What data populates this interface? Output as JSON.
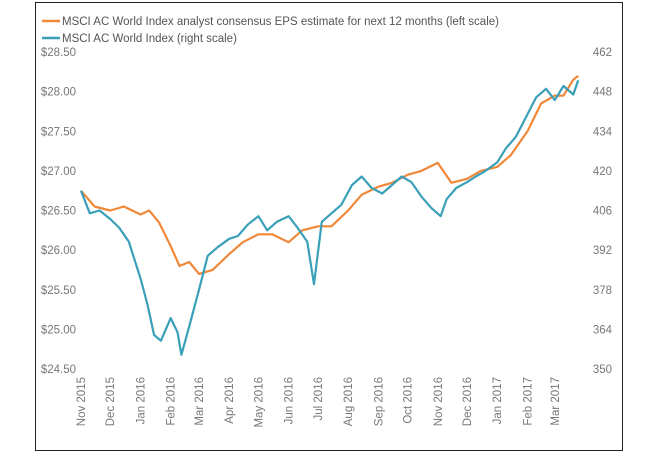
{
  "chart_data": {
    "type": "line",
    "title": "",
    "x_tick_labels": [
      "Nov 2015",
      "Dec 2015",
      "Jan 2016",
      "Feb 2016",
      "Mar 2016",
      "Apr 2016",
      "May 2016",
      "Jun 2016",
      "Jul 2016",
      "Aug 2016",
      "Sep 2016",
      "Oct 2016",
      "Nov 2016",
      "Dec 2016",
      "Jan 2017",
      "Feb 2017",
      "Mar 2017"
    ],
    "left_axis": {
      "ylim": [
        24.5,
        28.5
      ],
      "ticks": [
        24.5,
        25.0,
        25.5,
        26.0,
        26.5,
        27.0,
        27.5,
        28.0,
        28.5
      ],
      "tick_labels": [
        "$24.50",
        "$25.00",
        "$25.50",
        "$26.00",
        "$26.50",
        "$27.00",
        "$27.50",
        "$28.00",
        "$28.50"
      ]
    },
    "right_axis": {
      "ylim": [
        350,
        462
      ],
      "ticks": [
        350,
        364,
        378,
        392,
        406,
        420,
        434,
        448,
        462
      ],
      "tick_labels": [
        "350",
        "364",
        "378",
        "392",
        "406",
        "420",
        "434",
        "448",
        "462"
      ]
    },
    "grid": false,
    "legend_position": "top-left",
    "series": [
      {
        "name": "MSCI AC World Index analyst consensus EPS estimate for next 12 months  (left scale)",
        "axis": "left",
        "color": "#f0883a",
        "x": [
          "2015-11-01",
          "2015-11-15",
          "2015-12-01",
          "2015-12-15",
          "2016-01-01",
          "2016-01-10",
          "2016-01-20",
          "2016-02-01",
          "2016-02-10",
          "2016-02-20",
          "2016-03-01",
          "2016-03-15",
          "2016-04-01",
          "2016-04-15",
          "2016-05-01",
          "2016-05-15",
          "2016-06-01",
          "2016-06-15",
          "2016-07-01",
          "2016-07-15",
          "2016-08-01",
          "2016-08-15",
          "2016-09-01",
          "2016-09-15",
          "2016-10-01",
          "2016-10-15",
          "2016-11-01",
          "2016-11-15",
          "2016-12-01",
          "2016-12-15",
          "2017-01-01",
          "2017-01-15",
          "2017-02-01",
          "2017-02-15",
          "2017-03-01",
          "2017-03-10",
          "2017-03-20",
          "2017-03-25"
        ],
        "values": [
          26.75,
          26.55,
          26.5,
          26.55,
          26.45,
          26.5,
          26.35,
          26.05,
          25.8,
          25.85,
          25.7,
          25.75,
          25.95,
          26.1,
          26.2,
          26.2,
          26.1,
          26.25,
          26.3,
          26.3,
          26.5,
          26.7,
          26.8,
          26.85,
          26.95,
          27.0,
          27.1,
          26.85,
          26.9,
          27.0,
          27.05,
          27.2,
          27.5,
          27.85,
          27.95,
          27.95,
          28.15,
          28.2
        ]
      },
      {
        "name": "MSCI AC World Index (right scale)",
        "axis": "right",
        "color": "#3aa0b8",
        "x": [
          "2015-11-01",
          "2015-11-10",
          "2015-11-20",
          "2015-12-01",
          "2015-12-10",
          "2015-12-20",
          "2016-01-01",
          "2016-01-08",
          "2016-01-15",
          "2016-01-22",
          "2016-02-01",
          "2016-02-08",
          "2016-02-12",
          "2016-02-20",
          "2016-03-01",
          "2016-03-10",
          "2016-03-20",
          "2016-04-01",
          "2016-04-10",
          "2016-04-20",
          "2016-05-01",
          "2016-05-10",
          "2016-05-20",
          "2016-06-01",
          "2016-06-10",
          "2016-06-20",
          "2016-06-27",
          "2016-07-05",
          "2016-07-15",
          "2016-07-25",
          "2016-08-05",
          "2016-08-15",
          "2016-08-25",
          "2016-09-05",
          "2016-09-15",
          "2016-09-25",
          "2016-10-05",
          "2016-10-15",
          "2016-10-25",
          "2016-11-04",
          "2016-11-10",
          "2016-11-20",
          "2016-12-01",
          "2016-12-10",
          "2016-12-20",
          "2017-01-01",
          "2017-01-10",
          "2017-01-20",
          "2017-02-01",
          "2017-02-10",
          "2017-02-20",
          "2017-03-01",
          "2017-03-10",
          "2017-03-20",
          "2017-03-25"
        ],
        "values": [
          413,
          405,
          406,
          403,
          400,
          395,
          382,
          373,
          362,
          360,
          368,
          363,
          355,
          365,
          378,
          390,
          393,
          396,
          397,
          401,
          404,
          399,
          402,
          404,
          400,
          395,
          380,
          402,
          405,
          408,
          415,
          418,
          414,
          412,
          415,
          418,
          416,
          411,
          407,
          404,
          410,
          414,
          416,
          418,
          420,
          423,
          428,
          432,
          440,
          446,
          449,
          445,
          450,
          447,
          452
        ]
      }
    ]
  }
}
